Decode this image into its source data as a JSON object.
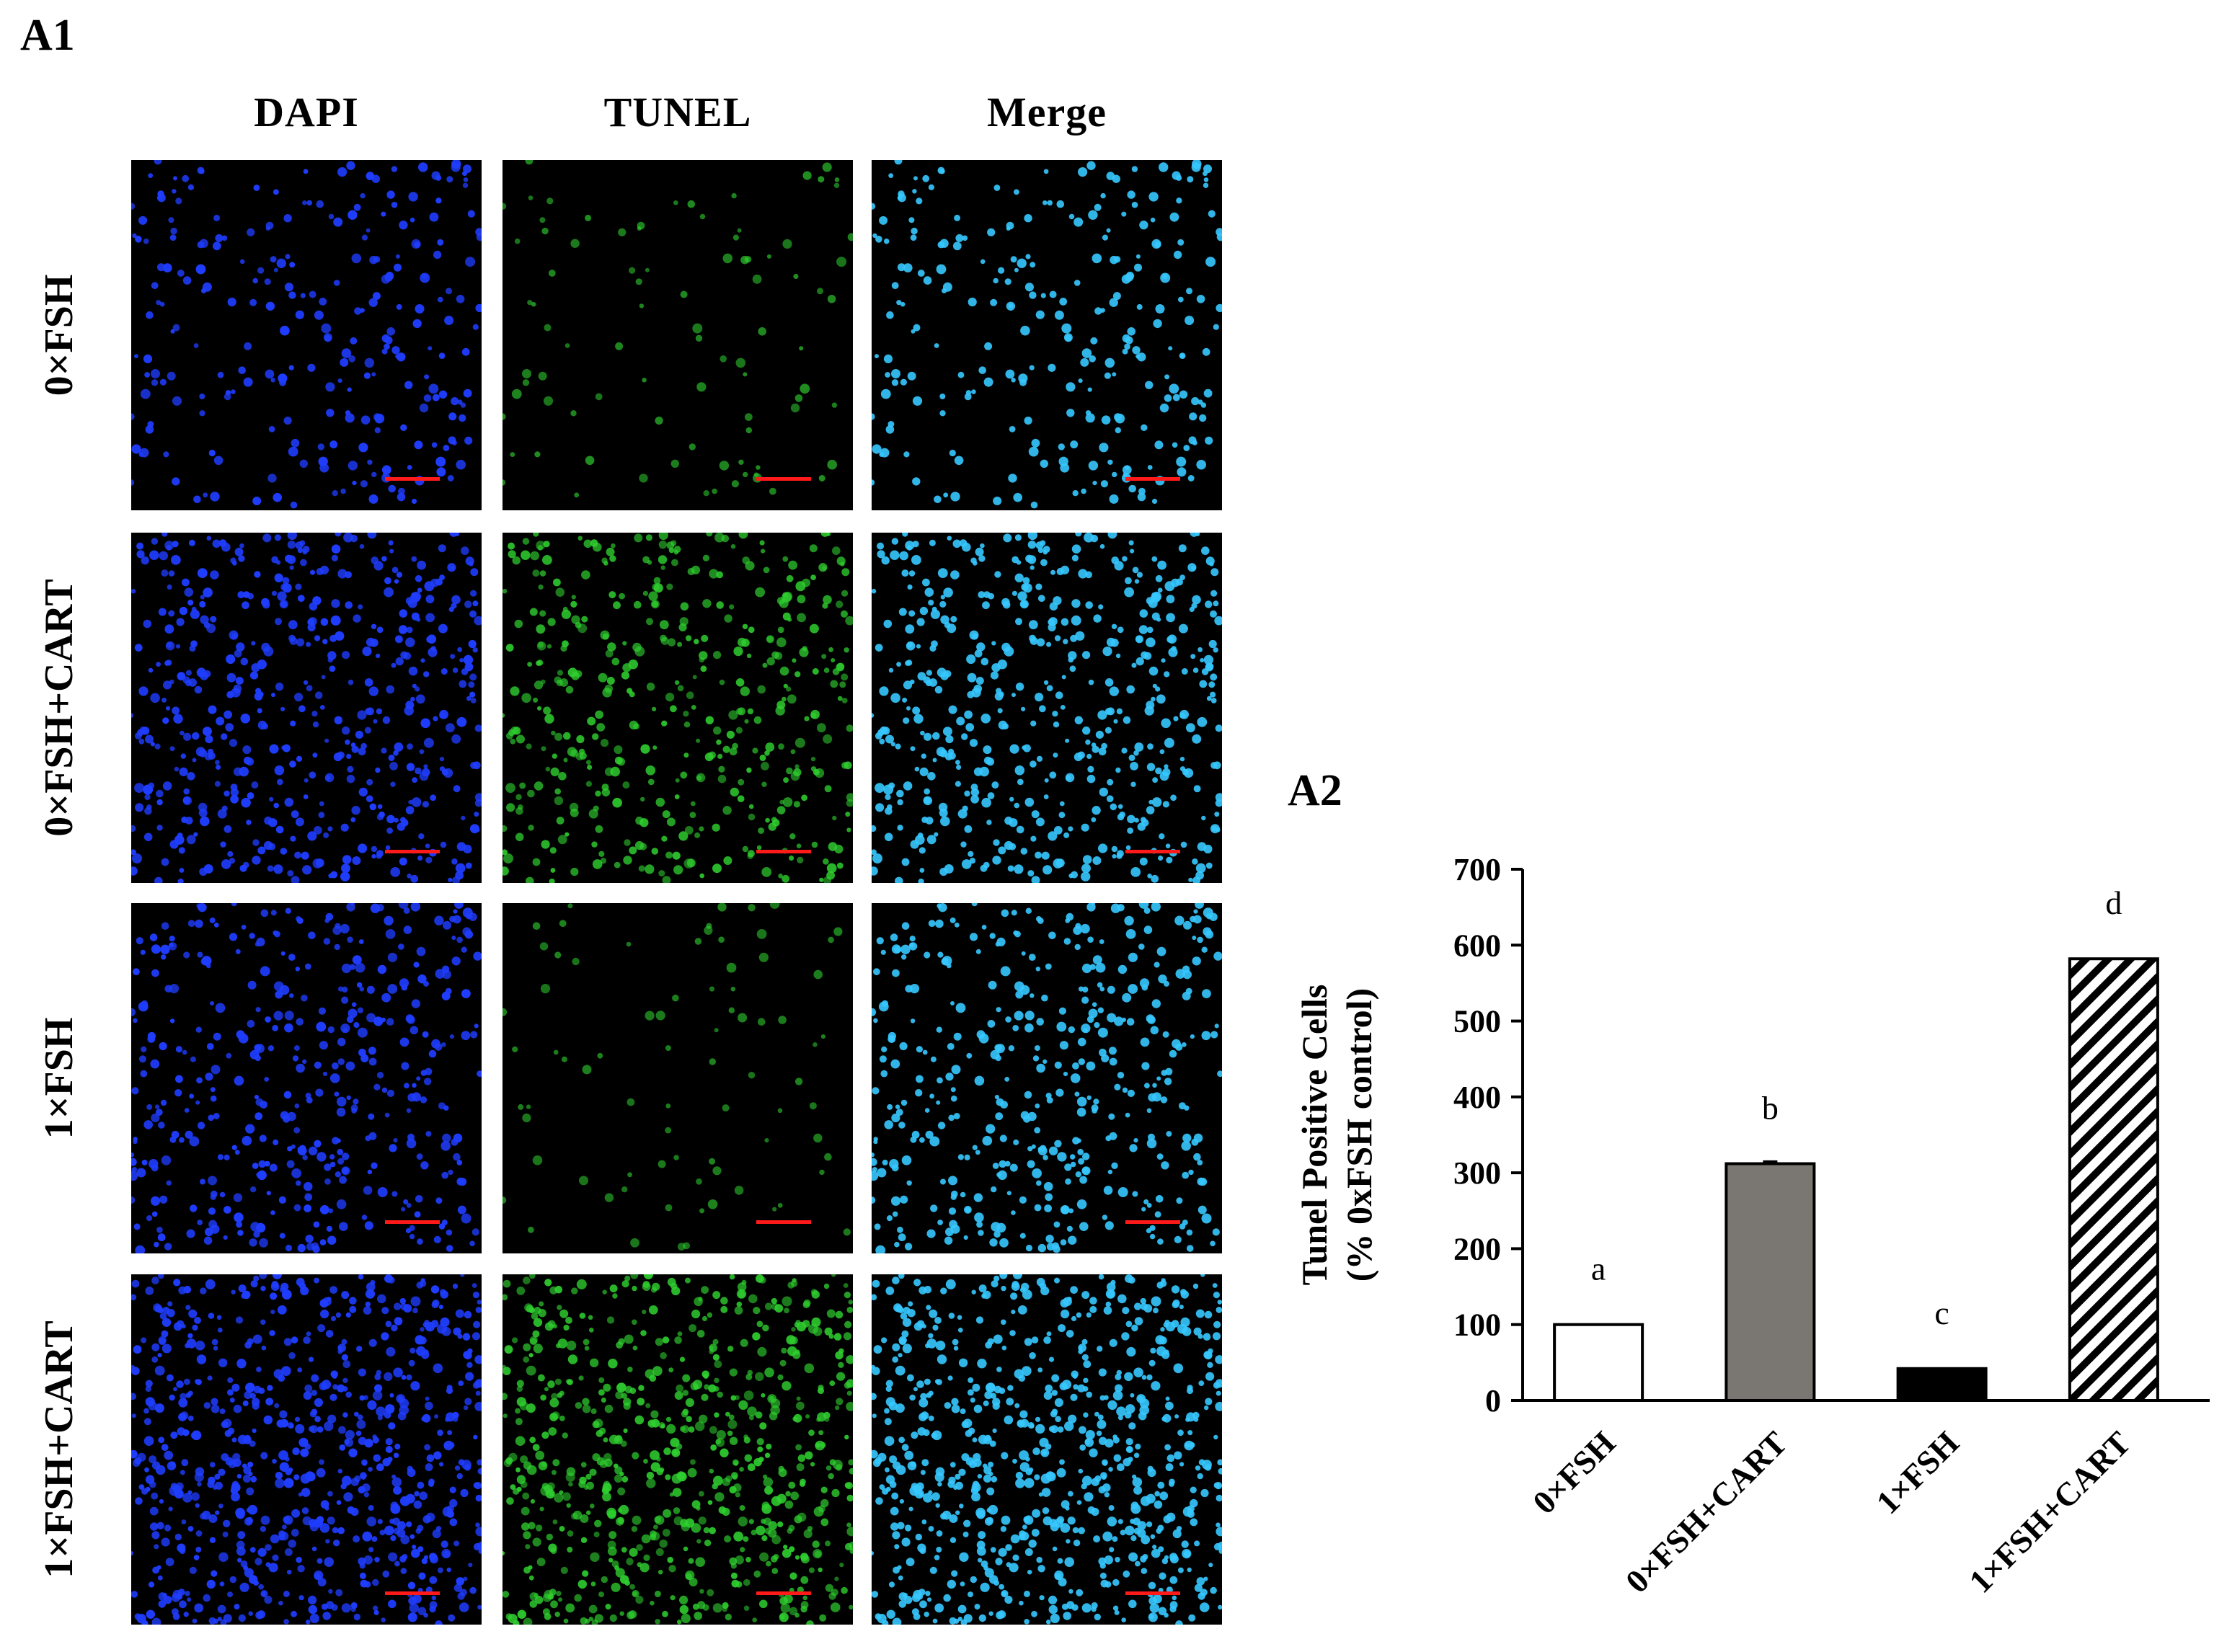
{
  "figure": {
    "panel_a1_label": "A1",
    "panel_a2_label": "A2"
  },
  "micrographs": {
    "columns": [
      "DAPI",
      "TUNEL",
      "Merge"
    ],
    "rows": [
      "0×FSH",
      "0×FSH+CART",
      "1×FSH",
      "1×FSH+CART"
    ],
    "channel_colors": {
      "dapi": "#1f3dff",
      "tunel": "#2fd02f",
      "merge": "#36c8ff",
      "scale_bar": "#ff1a1a"
    }
  },
  "chart_data": {
    "type": "bar",
    "categories": [
      "0×FSH",
      "0×FSH+CART",
      "1×FSH",
      "1×FSH+CART"
    ],
    "values": [
      100,
      312,
      42,
      582
    ],
    "errors": [
      0,
      3,
      0,
      0
    ],
    "letters": [
      "a",
      "b",
      "c",
      "d"
    ],
    "bar_styles": [
      "white",
      "gray",
      "black",
      "hatched"
    ],
    "bar_colors": [
      "#ffffff",
      "#7a7672",
      "#000000",
      "#ffffff"
    ],
    "ylabel_line1": "Tunel Positive Cells",
    "ylabel_line2": "(% 0xFSH control)",
    "ylim": [
      0,
      700
    ],
    "yticks": [
      0,
      100,
      200,
      300,
      400,
      500,
      600,
      700
    ],
    "grid": false
  }
}
